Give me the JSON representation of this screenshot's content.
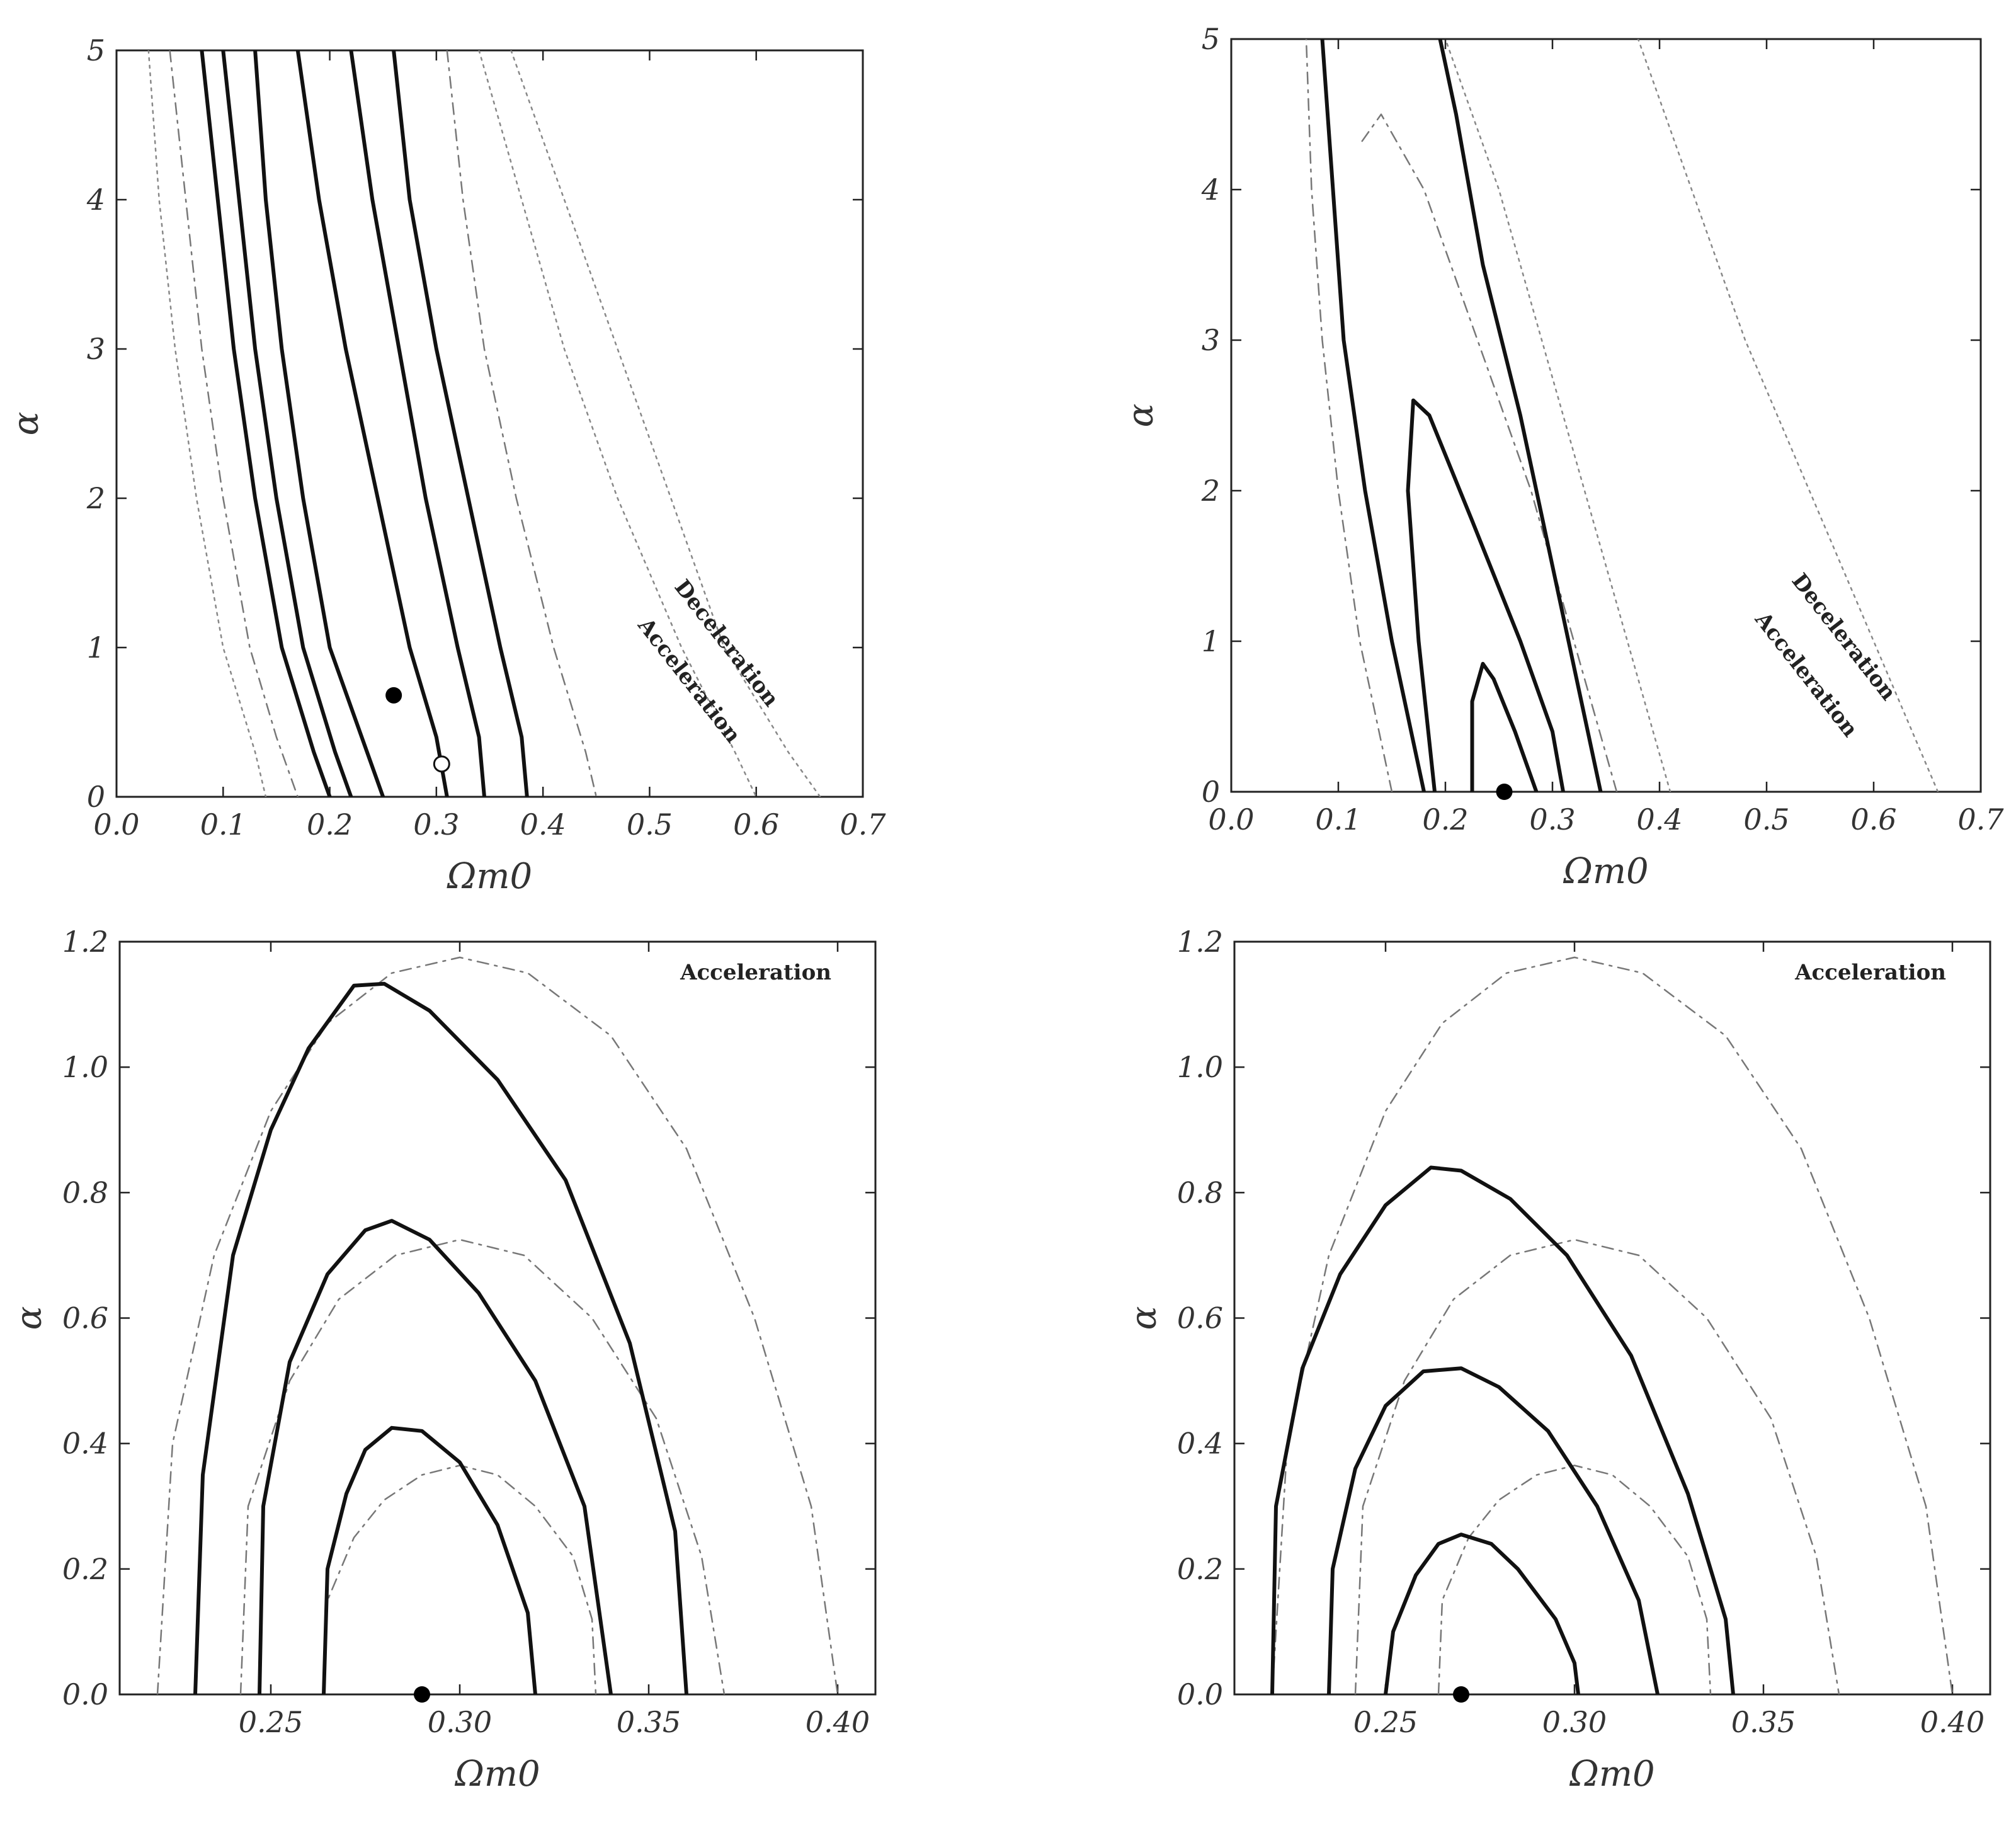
{
  "chart_data": [
    {
      "type": "contour",
      "xlabel": "Ωm0",
      "ylabel": "α",
      "xlim": [
        0.0,
        0.7
      ],
      "ylim": [
        0,
        5
      ],
      "xticks": [
        "0.0",
        "0.1",
        "0.2",
        "0.3",
        "0.4",
        "0.5",
        "0.6",
        "0.7"
      ],
      "yticks": [
        "0",
        "1",
        "2",
        "3",
        "4",
        "5"
      ],
      "annotations": [
        "Deceleration",
        "Acceleration"
      ],
      "best_fit_filled": [
        0.26,
        0.68
      ],
      "best_fit_open": [
        0.305,
        0.22
      ],
      "solid_contours": [
        [
          [
            0.08,
            5
          ],
          [
            0.095,
            4
          ],
          [
            0.11,
            3
          ],
          [
            0.13,
            2
          ],
          [
            0.155,
            1
          ],
          [
            0.185,
            0.3
          ],
          [
            0.2,
            0
          ]
        ],
        [
          [
            0.1,
            5
          ],
          [
            0.115,
            4
          ],
          [
            0.13,
            3
          ],
          [
            0.15,
            2
          ],
          [
            0.175,
            1
          ],
          [
            0.205,
            0.3
          ],
          [
            0.22,
            0
          ]
        ],
        [
          [
            0.13,
            5
          ],
          [
            0.14,
            4
          ],
          [
            0.155,
            3
          ],
          [
            0.175,
            2
          ],
          [
            0.2,
            1
          ],
          [
            0.235,
            0.3
          ],
          [
            0.25,
            0
          ]
        ],
        [
          [
            0.17,
            5
          ],
          [
            0.19,
            4
          ],
          [
            0.215,
            3
          ],
          [
            0.245,
            2
          ],
          [
            0.275,
            1
          ],
          [
            0.3,
            0.4
          ],
          [
            0.31,
            0
          ]
        ],
        [
          [
            0.22,
            5
          ],
          [
            0.24,
            4
          ],
          [
            0.265,
            3
          ],
          [
            0.29,
            2
          ],
          [
            0.32,
            1
          ],
          [
            0.34,
            0.4
          ],
          [
            0.345,
            0
          ]
        ],
        [
          [
            0.26,
            5
          ],
          [
            0.275,
            4
          ],
          [
            0.3,
            3
          ],
          [
            0.33,
            2
          ],
          [
            0.36,
            1
          ],
          [
            0.38,
            0.4
          ],
          [
            0.385,
            0
          ]
        ]
      ],
      "dashed_contours": [
        [
          [
            0.05,
            5
          ],
          [
            0.065,
            4
          ],
          [
            0.08,
            3
          ],
          [
            0.1,
            2
          ],
          [
            0.125,
            1
          ],
          [
            0.15,
            0.4
          ],
          [
            0.17,
            0
          ]
        ],
        [
          [
            0.31,
            5
          ],
          [
            0.325,
            4
          ],
          [
            0.345,
            3
          ],
          [
            0.375,
            2
          ],
          [
            0.41,
            1
          ],
          [
            0.44,
            0.3
          ],
          [
            0.45,
            0
          ]
        ]
      ],
      "dotted_contours": [
        [
          [
            0.03,
            5
          ],
          [
            0.04,
            4
          ],
          [
            0.055,
            3
          ],
          [
            0.075,
            2
          ],
          [
            0.1,
            1
          ],
          [
            0.13,
            0.3
          ],
          [
            0.14,
            0
          ]
        ],
        [
          [
            0.34,
            5
          ],
          [
            0.38,
            4
          ],
          [
            0.42,
            3
          ],
          [
            0.47,
            2
          ],
          [
            0.53,
            1
          ],
          [
            0.58,
            0.3
          ],
          [
            0.6,
            0
          ]
        ],
        [
          [
            0.37,
            5
          ],
          [
            0.42,
            4
          ],
          [
            0.47,
            3
          ],
          [
            0.52,
            2
          ],
          [
            0.57,
            1
          ],
          [
            0.63,
            0.3
          ],
          [
            0.66,
            0
          ]
        ]
      ]
    },
    {
      "type": "contour",
      "xlabel": "Ωm0",
      "ylabel": "α",
      "xlim": [
        0.0,
        0.7
      ],
      "ylim": [
        0,
        5
      ],
      "xticks": [
        "0.0",
        "0.1",
        "0.2",
        "0.3",
        "0.4",
        "0.5",
        "0.6",
        "0.7"
      ],
      "yticks": [
        "0",
        "1",
        "2",
        "3",
        "4",
        "5"
      ],
      "annotations": [
        "Deceleration",
        "Acceleration"
      ],
      "best_fit_filled": [
        0.255,
        0.0
      ],
      "solid_contours": [
        [
          [
            0.225,
            0
          ],
          [
            0.225,
            0.6
          ],
          [
            0.235,
            0.85
          ],
          [
            0.245,
            0.75
          ],
          [
            0.265,
            0.4
          ],
          [
            0.285,
            0
          ]
        ],
        [
          [
            0.19,
            0
          ],
          [
            0.175,
            1
          ],
          [
            0.165,
            2
          ],
          [
            0.17,
            2.6
          ],
          [
            0.185,
            2.5
          ],
          [
            0.225,
            1.8
          ],
          [
            0.27,
            1
          ],
          [
            0.3,
            0.4
          ],
          [
            0.31,
            0
          ]
        ],
        [
          [
            0.18,
            0
          ],
          [
            0.15,
            1
          ],
          [
            0.125,
            2
          ],
          [
            0.105,
            3
          ],
          [
            0.095,
            4
          ],
          [
            0.085,
            5
          ]
        ],
        [
          [
            0.345,
            0
          ],
          [
            0.33,
            0.5
          ],
          [
            0.3,
            1.5
          ],
          [
            0.27,
            2.5
          ],
          [
            0.235,
            3.5
          ],
          [
            0.21,
            4.5
          ],
          [
            0.195,
            5
          ]
        ]
      ],
      "dashed_contours": [
        [
          [
            0.15,
            0
          ],
          [
            0.12,
            1
          ],
          [
            0.1,
            2
          ],
          [
            0.085,
            3
          ],
          [
            0.075,
            4
          ],
          [
            0.07,
            5
          ]
        ],
        [
          [
            0.36,
            0
          ],
          [
            0.32,
            1
          ],
          [
            0.28,
            2
          ],
          [
            0.23,
            3
          ],
          [
            0.18,
            4
          ],
          [
            0.14,
            4.5
          ],
          [
            0.12,
            4.3
          ]
        ]
      ],
      "dotted_contours": [
        [
          [
            0.41,
            0
          ],
          [
            0.37,
            1
          ],
          [
            0.33,
            2
          ],
          [
            0.29,
            3
          ],
          [
            0.25,
            4
          ],
          [
            0.2,
            5
          ]
        ],
        [
          [
            0.66,
            0
          ],
          [
            0.6,
            1
          ],
          [
            0.54,
            2
          ],
          [
            0.48,
            3
          ],
          [
            0.43,
            4
          ],
          [
            0.38,
            5
          ]
        ]
      ]
    },
    {
      "type": "contour",
      "xlabel": "Ωm0",
      "ylabel": "α",
      "xlim": [
        0.21,
        0.41
      ],
      "ylim": [
        0.0,
        1.2
      ],
      "xticks": [
        "0.25",
        "0.30",
        "0.35",
        "0.40"
      ],
      "yticks": [
        "0.0",
        "0.2",
        "0.4",
        "0.6",
        "0.8",
        "1.0",
        "1.2"
      ],
      "annotations": [
        "Acceleration"
      ],
      "best_fit_filled": [
        0.29,
        0.0
      ],
      "solid_contours": [
        [
          [
            0.264,
            0
          ],
          [
            0.265,
            0.2
          ],
          [
            0.27,
            0.32
          ],
          [
            0.275,
            0.39
          ],
          [
            0.282,
            0.425
          ],
          [
            0.29,
            0.42
          ],
          [
            0.3,
            0.37
          ],
          [
            0.31,
            0.27
          ],
          [
            0.318,
            0.13
          ],
          [
            0.32,
            0
          ]
        ],
        [
          [
            0.247,
            0
          ],
          [
            0.248,
            0.3
          ],
          [
            0.255,
            0.53
          ],
          [
            0.265,
            0.67
          ],
          [
            0.275,
            0.74
          ],
          [
            0.282,
            0.755
          ],
          [
            0.292,
            0.725
          ],
          [
            0.305,
            0.64
          ],
          [
            0.32,
            0.5
          ],
          [
            0.333,
            0.3
          ],
          [
            0.34,
            0
          ]
        ],
        [
          [
            0.23,
            0
          ],
          [
            0.232,
            0.35
          ],
          [
            0.24,
            0.7
          ],
          [
            0.25,
            0.9
          ],
          [
            0.26,
            1.03
          ],
          [
            0.272,
            1.13
          ],
          [
            0.28,
            1.133
          ],
          [
            0.292,
            1.09
          ],
          [
            0.31,
            0.98
          ],
          [
            0.328,
            0.82
          ],
          [
            0.345,
            0.56
          ],
          [
            0.357,
            0.26
          ],
          [
            0.36,
            0
          ]
        ]
      ],
      "dashed_contours": [
        [
          [
            0.264,
            0
          ],
          [
            0.265,
            0.15
          ],
          [
            0.272,
            0.25
          ],
          [
            0.28,
            0.31
          ],
          [
            0.29,
            0.35
          ],
          [
            0.3,
            0.365
          ],
          [
            0.31,
            0.35
          ],
          [
            0.32,
            0.3
          ],
          [
            0.33,
            0.22
          ],
          [
            0.335,
            0.12
          ],
          [
            0.336,
            0
          ]
        ],
        [
          [
            0.242,
            0
          ],
          [
            0.244,
            0.3
          ],
          [
            0.255,
            0.5
          ],
          [
            0.268,
            0.63
          ],
          [
            0.283,
            0.7
          ],
          [
            0.3,
            0.725
          ],
          [
            0.317,
            0.7
          ],
          [
            0.335,
            0.6
          ],
          [
            0.352,
            0.44
          ],
          [
            0.364,
            0.22
          ],
          [
            0.37,
            0
          ]
        ],
        [
          [
            0.22,
            0
          ],
          [
            0.224,
            0.4
          ],
          [
            0.235,
            0.7
          ],
          [
            0.25,
            0.93
          ],
          [
            0.265,
            1.07
          ],
          [
            0.282,
            1.15
          ],
          [
            0.3,
            1.175
          ],
          [
            0.318,
            1.15
          ],
          [
            0.34,
            1.05
          ],
          [
            0.36,
            0.87
          ],
          [
            0.378,
            0.6
          ],
          [
            0.393,
            0.3
          ],
          [
            0.4,
            0
          ]
        ]
      ]
    },
    {
      "type": "contour",
      "xlabel": "Ωm0",
      "ylabel": "α",
      "xlim": [
        0.21,
        0.41
      ],
      "ylim": [
        0.0,
        1.2
      ],
      "xticks": [
        "0.25",
        "0.30",
        "0.35",
        "0.40"
      ],
      "yticks": [
        "0.0",
        "0.2",
        "0.4",
        "0.6",
        "0.8",
        "1.0",
        "1.2"
      ],
      "annotations": [
        "Acceleration"
      ],
      "best_fit_filled": [
        0.27,
        0.0
      ],
      "solid_contours": [
        [
          [
            0.25,
            0
          ],
          [
            0.252,
            0.1
          ],
          [
            0.258,
            0.19
          ],
          [
            0.264,
            0.24
          ],
          [
            0.27,
            0.255
          ],
          [
            0.278,
            0.24
          ],
          [
            0.285,
            0.2
          ],
          [
            0.295,
            0.12
          ],
          [
            0.3,
            0.05
          ],
          [
            0.301,
            0
          ]
        ],
        [
          [
            0.235,
            0
          ],
          [
            0.236,
            0.2
          ],
          [
            0.242,
            0.36
          ],
          [
            0.25,
            0.46
          ],
          [
            0.26,
            0.515
          ],
          [
            0.27,
            0.52
          ],
          [
            0.28,
            0.49
          ],
          [
            0.293,
            0.42
          ],
          [
            0.306,
            0.3
          ],
          [
            0.317,
            0.15
          ],
          [
            0.322,
            0
          ]
        ],
        [
          [
            0.22,
            0
          ],
          [
            0.221,
            0.3
          ],
          [
            0.228,
            0.52
          ],
          [
            0.238,
            0.67
          ],
          [
            0.25,
            0.78
          ],
          [
            0.262,
            0.84
          ],
          [
            0.27,
            0.835
          ],
          [
            0.283,
            0.79
          ],
          [
            0.298,
            0.7
          ],
          [
            0.315,
            0.54
          ],
          [
            0.33,
            0.32
          ],
          [
            0.34,
            0.12
          ],
          [
            0.342,
            0
          ]
        ]
      ],
      "dashed_contours": [
        [
          [
            0.264,
            0
          ],
          [
            0.265,
            0.15
          ],
          [
            0.272,
            0.25
          ],
          [
            0.28,
            0.31
          ],
          [
            0.29,
            0.35
          ],
          [
            0.3,
            0.365
          ],
          [
            0.31,
            0.35
          ],
          [
            0.32,
            0.3
          ],
          [
            0.33,
            0.22
          ],
          [
            0.335,
            0.12
          ],
          [
            0.336,
            0
          ]
        ],
        [
          [
            0.242,
            0
          ],
          [
            0.244,
            0.3
          ],
          [
            0.255,
            0.5
          ],
          [
            0.268,
            0.63
          ],
          [
            0.283,
            0.7
          ],
          [
            0.3,
            0.725
          ],
          [
            0.317,
            0.7
          ],
          [
            0.335,
            0.6
          ],
          [
            0.352,
            0.44
          ],
          [
            0.364,
            0.22
          ],
          [
            0.37,
            0
          ]
        ],
        [
          [
            0.22,
            0
          ],
          [
            0.224,
            0.4
          ],
          [
            0.235,
            0.7
          ],
          [
            0.25,
            0.93
          ],
          [
            0.265,
            1.07
          ],
          [
            0.282,
            1.15
          ],
          [
            0.3,
            1.175
          ],
          [
            0.318,
            1.15
          ],
          [
            0.34,
            1.05
          ],
          [
            0.36,
            0.87
          ],
          [
            0.378,
            0.6
          ],
          [
            0.393,
            0.3
          ],
          [
            0.4,
            0
          ]
        ]
      ]
    }
  ]
}
